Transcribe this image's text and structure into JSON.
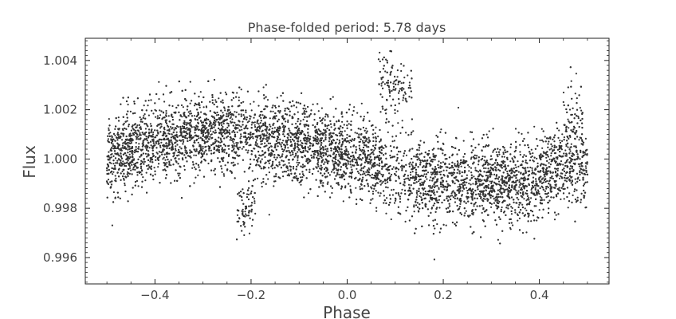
{
  "chart_data": {
    "type": "scatter",
    "title": "Phase-folded period: 5.78 days",
    "xlabel": "Phase",
    "ylabel": "Flux",
    "xlim": [
      -0.545,
      0.545
    ],
    "ylim": [
      0.99493,
      1.0049
    ],
    "x_ticks": [
      -0.4,
      -0.2,
      0.0,
      0.2,
      0.4
    ],
    "x_tick_labels": [
      "−0.4",
      "−0.2",
      "0.0",
      "0.2",
      "0.4"
    ],
    "y_ticks": [
      0.996,
      0.998,
      1.0,
      1.002,
      1.004
    ],
    "y_tick_labels": [
      "0.996",
      "0.998",
      "1.000",
      "1.002",
      "1.004"
    ],
    "grid": false,
    "legend": "none",
    "point_color": "#333333",
    "x_range": [
      -0.5,
      0.5
    ],
    "trend": {
      "phase": [
        -0.5,
        -0.45,
        -0.4,
        -0.35,
        -0.3,
        -0.25,
        -0.2,
        -0.15,
        -0.1,
        -0.05,
        0.0,
        0.05,
        0.1,
        0.15,
        0.2,
        0.25,
        0.3,
        0.35,
        0.4,
        0.45,
        0.5
      ],
      "flux": [
        1.0,
        1.0004,
        1.0007,
        1.0009,
        1.0011,
        1.0011,
        1.0009,
        1.0007,
        1.0006,
        1.0004,
        1.0002,
        0.9999,
        0.9993,
        0.9992,
        0.9991,
        0.999,
        0.999,
        0.999,
        0.9993,
        0.9997,
        0.9997
      ]
    },
    "scatter_sigma": 0.0008,
    "features": [
      {
        "phase": 0.1,
        "flux": 1.003,
        "spread": 0.0007,
        "width": 0.035
      },
      {
        "phase": -0.21,
        "flux": 0.998,
        "spread": 0.0006,
        "width": 0.02
      },
      {
        "phase": 0.47,
        "flux": 1.0012,
        "spread": 0.001,
        "width": 0.02
      }
    ],
    "n_points": 9000
  }
}
